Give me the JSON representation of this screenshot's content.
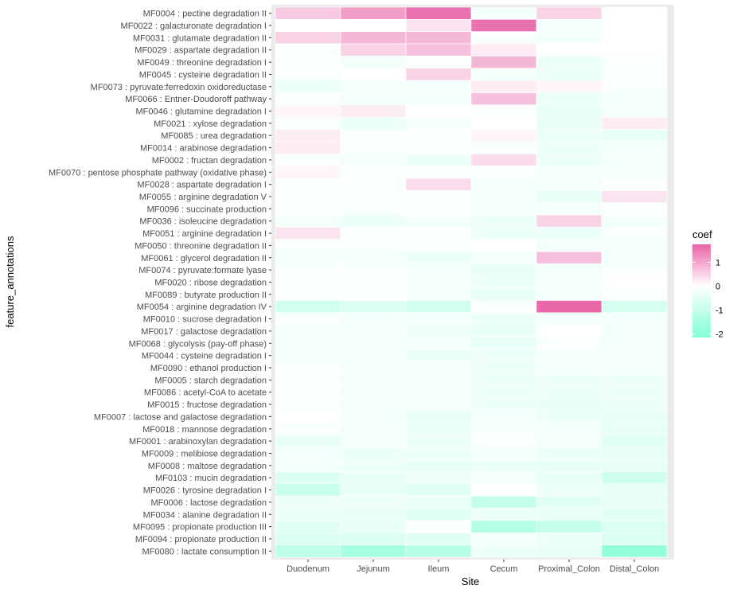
{
  "chart_data": {
    "type": "heatmap",
    "title": "",
    "xlabel": "Site",
    "ylabel": "feature_annotations",
    "x_categories": [
      "Duodenum",
      "Jejunum",
      "Ileum",
      "Cecum",
      "Proximal_Colon",
      "Distal_Colon"
    ],
    "y_categories": [
      "MF0004 : pectine degradation II",
      "MF0022 : galacturonate degradation I",
      "MF0031 : glutamate degradation II",
      "MF0029 : aspartate degradation II",
      "MF0049 : threonine degradation I",
      "MF0045 : cysteine degradation II",
      "MF0073 : pyruvate:ferredoxin oxidoreductase",
      "MF0066 : Entner-Doudoroff pathway",
      "MF0046 : glutamine degradation I",
      "MF0021 : xylose degradation",
      "MF0085 : urea degradation",
      "MF0014 : arabinose degradation",
      "MF0002 : fructan degradation",
      "MF0070 : pentose phosphate pathway (oxidative phase)",
      "MF0028 : aspartate degradation I",
      "MF0055 : arginine degradation V",
      "MF0096 : succinate production",
      "MF0036 : isoleucine degradation",
      "MF0051 : arginine degradation I",
      "MF0050 : threonine degradation II",
      "MF0061 : glycerol degradation II",
      "MF0074 : pyruvate:formate lyase",
      "MF0020 : ribose degradation",
      "MF0089 : butyrate production II",
      "MF0054 : arginine degradation IV",
      "MF0010 : sucrose degradation I",
      "MF0017 : galactose degradation",
      "MF0068 : glycolysis (pay-off phase)",
      "MF0044 : cysteine degradation I",
      "MF0090 : ethanol production I",
      "MF0005 : starch degradation",
      "MF0086 : acetyl-CoA to acetate",
      "MF0015 : fructose degradation",
      "MF0007 : lactose and galactose degradation",
      "MF0018 : mannose degradation",
      "MF0001 : arabinoxylan degradation",
      "MF0009 : melibiose degradation",
      "MF0008 : maltose degradation",
      "MF0103 : mucin degradation",
      "MF0026 : tyrosine degradation I",
      "MF0006 : lactose degradation",
      "MF0034 : alanine degradation II",
      "MF0095 : propionate production III",
      "MF0094 : propionate production II",
      "MF0080 : lactate consumption II"
    ],
    "values": [
      [
        0.6,
        1.1,
        1.6,
        -0.2,
        0.5,
        null
      ],
      [
        0.0,
        0.0,
        0.3,
        1.6,
        -0.2,
        null
      ],
      [
        0.5,
        0.8,
        0.8,
        -0.1,
        -0.2,
        null
      ],
      [
        -0.1,
        0.5,
        0.7,
        0.2,
        0.0,
        null
      ],
      [
        -0.1,
        -0.2,
        -0.1,
        0.8,
        -0.3,
        -0.1
      ],
      [
        -0.1,
        0.0,
        0.5,
        -0.2,
        -0.3,
        -0.1
      ],
      [
        -0.3,
        -0.2,
        -0.2,
        0.2,
        0.1,
        -0.1
      ],
      [
        -0.1,
        -0.2,
        -0.2,
        0.7,
        -0.3,
        -0.2
      ],
      [
        0.1,
        0.2,
        0.0,
        -0.1,
        -0.4,
        -0.2
      ],
      [
        -0.1,
        -0.3,
        -0.2,
        0.0,
        -0.4,
        0.2
      ],
      [
        0.2,
        -0.1,
        -0.1,
        0.1,
        -0.3,
        -0.4
      ],
      [
        0.2,
        -0.1,
        -0.1,
        -0.1,
        -0.3,
        -0.2
      ],
      [
        -0.1,
        -0.2,
        -0.3,
        0.4,
        -0.3,
        -0.2
      ],
      [
        0.1,
        -0.1,
        -0.1,
        -0.1,
        -0.2,
        -0.2
      ],
      [
        -0.1,
        -0.1,
        0.4,
        -0.2,
        -0.2,
        -0.1
      ],
      [
        -0.1,
        -0.1,
        -0.1,
        -0.2,
        -0.4,
        0.3
      ],
      [
        -0.1,
        -0.1,
        -0.1,
        -0.2,
        -0.2,
        -0.1
      ],
      [
        -0.2,
        -0.3,
        -0.2,
        -0.3,
        0.5,
        -0.2
      ],
      [
        0.3,
        -0.1,
        -0.1,
        -0.3,
        -0.3,
        -0.1
      ],
      [
        -0.1,
        -0.1,
        -0.1,
        0.0,
        -0.2,
        -0.2
      ],
      [
        -0.2,
        -0.2,
        -0.3,
        -0.2,
        0.7,
        -0.2
      ],
      [
        -0.1,
        -0.1,
        -0.2,
        -0.4,
        -0.2,
        -0.1
      ],
      [
        -0.1,
        -0.1,
        -0.2,
        -0.3,
        -0.2,
        0.0
      ],
      [
        -0.1,
        -0.1,
        -0.2,
        -0.4,
        -0.2,
        -0.1
      ],
      [
        -0.8,
        -0.6,
        -0.8,
        -0.1,
        1.7,
        -0.7
      ],
      [
        -0.1,
        -0.2,
        -0.2,
        -0.3,
        -0.2,
        -0.2
      ],
      [
        -0.2,
        -0.2,
        -0.3,
        -0.4,
        0.0,
        -0.2
      ],
      [
        -0.2,
        -0.2,
        -0.2,
        -0.4,
        -0.1,
        -0.2
      ],
      [
        -0.2,
        -0.2,
        -0.3,
        -0.3,
        -0.2,
        -0.2
      ],
      [
        -0.1,
        -0.2,
        -0.2,
        -0.3,
        -0.2,
        -0.2
      ],
      [
        -0.1,
        -0.2,
        -0.2,
        -0.3,
        -0.3,
        -0.3
      ],
      [
        -0.1,
        -0.2,
        -0.2,
        -0.3,
        -0.3,
        -0.3
      ],
      [
        -0.1,
        -0.2,
        -0.2,
        -0.3,
        -0.4,
        -0.3
      ],
      [
        0.0,
        -0.2,
        -0.4,
        -0.2,
        -0.3,
        -0.4
      ],
      [
        -0.1,
        -0.2,
        -0.3,
        -0.2,
        -0.2,
        -0.4
      ],
      [
        -0.4,
        -0.2,
        -0.3,
        -0.1,
        -0.2,
        -0.5
      ],
      [
        -0.2,
        -0.3,
        -0.3,
        -0.2,
        -0.3,
        -0.4
      ],
      [
        -0.2,
        -0.3,
        -0.4,
        -0.3,
        -0.4,
        -0.4
      ],
      [
        -0.6,
        -0.4,
        -0.3,
        -0.2,
        -0.4,
        -0.8
      ],
      [
        -0.9,
        -0.4,
        -0.5,
        0.0,
        -0.3,
        -0.4
      ],
      [
        -0.3,
        -0.3,
        -0.3,
        -1.0,
        -0.5,
        -0.4
      ],
      [
        -0.3,
        -0.4,
        -0.5,
        -0.3,
        -0.4,
        -0.5
      ],
      [
        -0.5,
        -0.4,
        -0.1,
        -1.3,
        -1.0,
        -0.6
      ],
      [
        -0.6,
        -0.6,
        -0.5,
        -0.2,
        -0.3,
        -0.6
      ],
      [
        -1.1,
        -1.5,
        -1.2,
        -0.3,
        -0.4,
        -1.8
      ]
    ],
    "legend": {
      "title": "coef",
      "ticks": [
        1,
        0,
        -1,
        -2
      ],
      "range": [
        -2.15,
        1.75
      ],
      "low_color": "#7fffd4",
      "mid_color": "#ffffff",
      "high_color": "#e864a8"
    },
    "panel_color": "#ebebeb",
    "na_color": "#ffffff"
  }
}
